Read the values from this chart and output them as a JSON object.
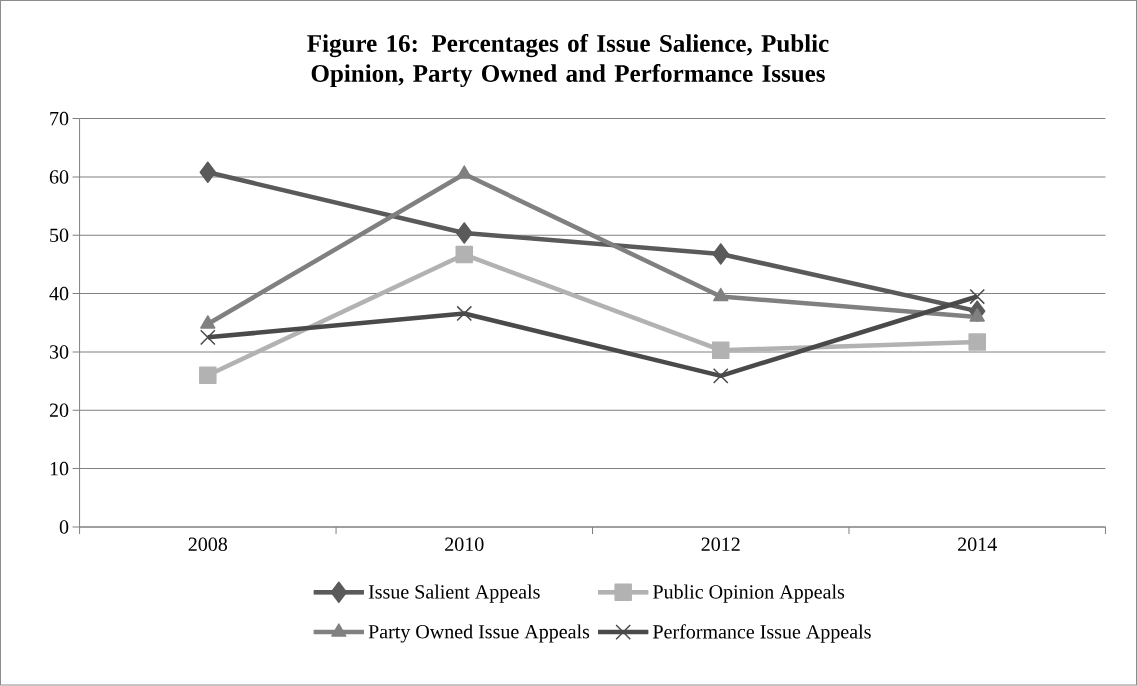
{
  "chart_data": {
    "type": "line",
    "title": "Figure 16: Percentages of  Issue Salience, Public Opinion, Party Owned and Performance Issues",
    "categories": [
      "2008",
      "2010",
      "2012",
      "2014"
    ],
    "series": [
      {
        "name": "Issue Salient Appeals",
        "color": "#5a5a5a",
        "marker": "diamond",
        "values": [
          60.8,
          50.4,
          46.8,
          37
        ]
      },
      {
        "name": "Public Opinion Appeals",
        "color": "#b2b2b2",
        "marker": "square",
        "values": [
          26,
          46.7,
          30.3,
          31.7
        ]
      },
      {
        "name": "Party Owned Issue Appeals",
        "color": "#808080",
        "marker": "triangle",
        "values": [
          34.8,
          60.5,
          39.5,
          36
        ]
      },
      {
        "name": "Performance Issue Appeals",
        "color": "#4a4a4a",
        "marker": "cross",
        "values": [
          32.5,
          36.6,
          25.9,
          39.5
        ]
      }
    ],
    "ylim": [
      0,
      70
    ],
    "yticks": [
      0,
      10,
      20,
      30,
      40,
      50,
      60,
      70
    ],
    "grid": "y",
    "legend": "bottom",
    "line_style": "solid"
  }
}
